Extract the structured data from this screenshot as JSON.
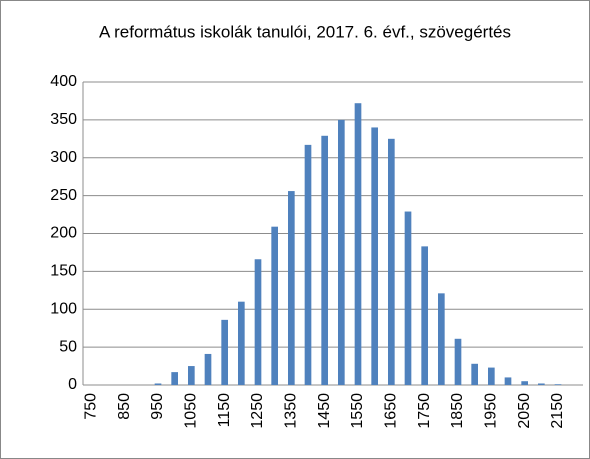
{
  "chart_data": {
    "type": "bar",
    "title": "A református iskolák tanulói, 2017. 6. évf., szövegértés",
    "categories": [
      "750",
      null,
      "850",
      null,
      "950",
      null,
      "1050",
      null,
      "1150",
      null,
      "1250",
      null,
      "1350",
      null,
      "1450",
      null,
      "1550",
      null,
      "1650",
      null,
      "1750",
      null,
      "1850",
      null,
      "1950",
      null,
      "2050",
      null,
      "2150",
      null
    ],
    "values": [
      0,
      0,
      0,
      0,
      2,
      17,
      25,
      41,
      86,
      110,
      166,
      209,
      256,
      317,
      329,
      350,
      372,
      340,
      325,
      229,
      183,
      121,
      61,
      28,
      23,
      10,
      5,
      2,
      1,
      0
    ],
    "color": "#4f81bd",
    "ylim": [
      0,
      400
    ],
    "yticks": [
      0,
      50,
      100,
      150,
      200,
      250,
      300,
      350,
      400
    ],
    "grid": true
  }
}
